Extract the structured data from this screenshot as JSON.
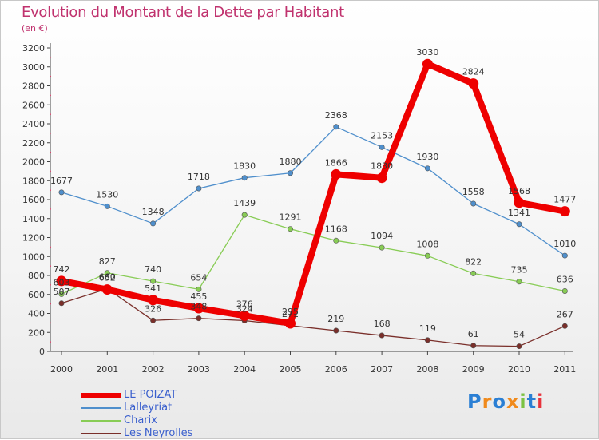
{
  "title": "Evolution du Montant de la Dette par Habitant",
  "subtitle": "(en €)",
  "logo": {
    "text": "Proxiti"
  },
  "chart_data": {
    "type": "line",
    "title": "Evolution du Montant de la Dette par Habitant",
    "subtitle": "(en €)",
    "xlabel": "",
    "ylabel": "",
    "x": [
      "2000",
      "2001",
      "2002",
      "2003",
      "2004",
      "2005",
      "2006",
      "2007",
      "2008",
      "2009",
      "2010",
      "2011"
    ],
    "ylim": [
      0,
      3200
    ],
    "yticks": [
      0,
      200,
      400,
      600,
      800,
      1000,
      1200,
      1400,
      1600,
      1800,
      2000,
      2200,
      2400,
      2600,
      2800,
      3000,
      3200
    ],
    "grid": false,
    "legend_position": "bottom-left",
    "series": [
      {
        "name": "LE POIZAT",
        "color": "#ee0000",
        "values": [
          742,
          652,
          541,
          455,
          376,
          295,
          1866,
          1830,
          3030,
          2824,
          1568,
          1477
        ]
      },
      {
        "name": "Lalleyriat",
        "color": "#4f8fcc",
        "values": [
          1677,
          1530,
          1348,
          1718,
          1830,
          1880,
          2368,
          2153,
          1930,
          1558,
          1341,
          1010
        ]
      },
      {
        "name": "Charix",
        "color": "#88cc55",
        "values": [
          603,
          827,
          740,
          654,
          1439,
          1291,
          1168,
          1094,
          1008,
          822,
          735,
          636
        ]
      },
      {
        "name": "Les Neyrolles",
        "color": "#7a2f2a",
        "values": [
          507,
          660,
          326,
          348,
          324,
          271,
          219,
          168,
          119,
          61,
          54,
          267
        ]
      }
    ]
  }
}
